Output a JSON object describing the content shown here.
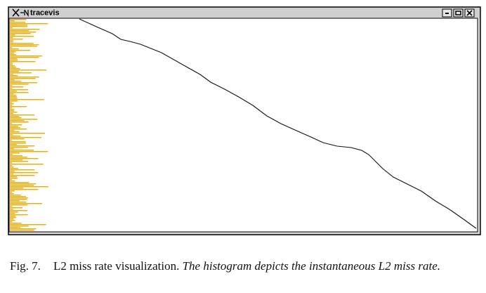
{
  "window": {
    "title": "tracevis"
  },
  "caption": {
    "label": "Fig. 7.",
    "title": "L2 miss rate visualization.",
    "text": "The histogram depicts the instantaneous L2 miss rate."
  }
}
